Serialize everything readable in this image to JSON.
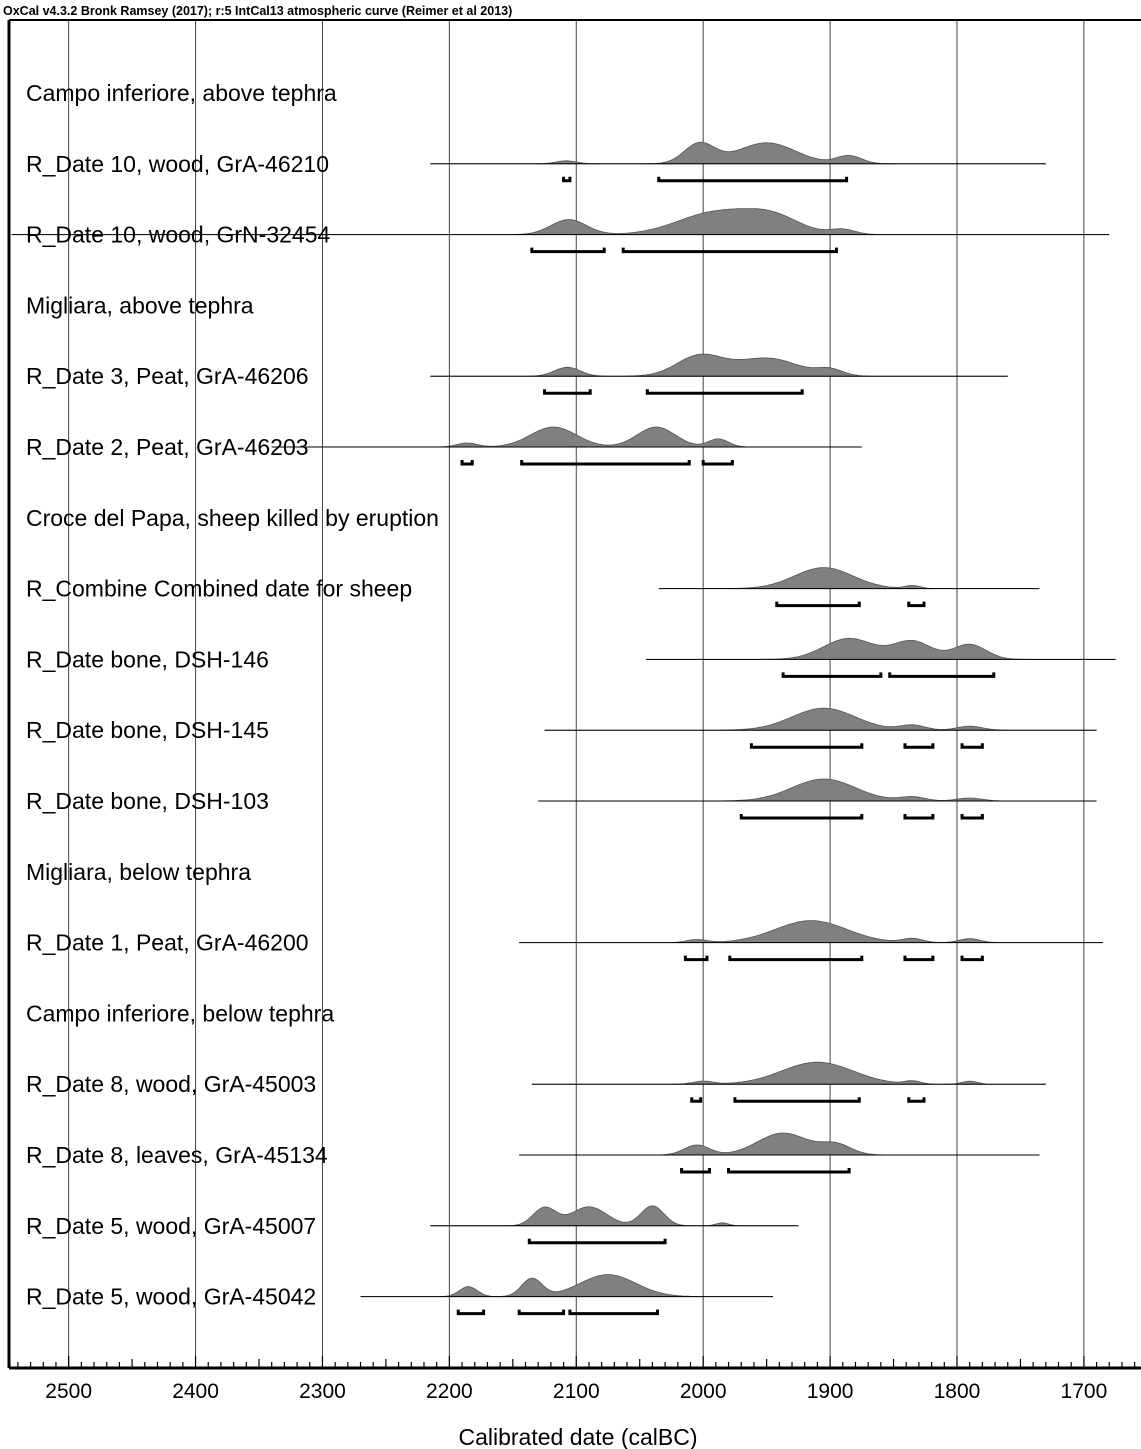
{
  "header": "OxCal v4.3.2 Bronk Ramsey (2017); r:5 IntCal13 atmospheric curve (Reimer et al 2013)",
  "chart_data": {
    "type": "area",
    "title": "",
    "xlabel": "Calibrated date (calBC)",
    "ylabel": "",
    "x_reversed": true,
    "xlim": [
      2547,
      1655
    ],
    "x_ticks": [
      2500,
      2400,
      2300,
      2200,
      2100,
      2000,
      1900,
      1800,
      1700
    ],
    "grid": true,
    "rows": [
      {
        "label": "Campo inferiore, above tephra",
        "header": true
      },
      {
        "label": "R_Date 10, wood, GrA-46210",
        "line": [
          2215,
          1730
        ],
        "peaks": [
          [
            2108,
            3,
            8
          ],
          [
            2003,
            20,
            12
          ],
          [
            1950,
            21,
            23
          ],
          [
            1885,
            8,
            10
          ]
        ],
        "ranges": [
          [
            2110,
            2105
          ],
          [
            2035,
            1887
          ]
        ]
      },
      {
        "label": "R_Date 10, wood, GrN-32454",
        "line": [
          2545,
          1680
        ],
        "peaks": [
          [
            2106,
            15,
            14
          ],
          [
            1990,
            22,
            30
          ],
          [
            1945,
            16,
            22
          ],
          [
            1890,
            5,
            10
          ]
        ],
        "ranges": [
          [
            2135,
            2078
          ],
          [
            2063,
            1895
          ]
        ]
      },
      {
        "label": "Migliara, above tephra",
        "header": true
      },
      {
        "label": "R_Date 3, Peat, GrA-46206",
        "line": [
          2215,
          1760
        ],
        "peaks": [
          [
            2107,
            9,
            10
          ],
          [
            2003,
            20,
            18
          ],
          [
            1950,
            18,
            25
          ],
          [
            1900,
            6,
            10
          ]
        ],
        "ranges": [
          [
            2125,
            2089
          ],
          [
            2044,
            1922
          ]
        ]
      },
      {
        "label": "R_Date 2, Peat, GrA-46203",
        "line": [
          2340,
          1875
        ],
        "peaks": [
          [
            2186,
            4,
            8
          ],
          [
            2118,
            20,
            18
          ],
          [
            2037,
            20,
            15
          ],
          [
            1988,
            8,
            8
          ]
        ],
        "ranges": [
          [
            2190,
            2182
          ],
          [
            2143,
            2011
          ],
          [
            2000,
            1977
          ]
        ]
      },
      {
        "label": "Croce del Papa, sheep killed by eruption",
        "header": true
      },
      {
        "label": "R_Combine Combined date for sheep",
        "line": [
          2035,
          1735
        ],
        "peaks": [
          [
            1905,
            21,
            23
          ],
          [
            1835,
            3,
            6
          ]
        ],
        "ranges": [
          [
            1942,
            1877
          ],
          [
            1838,
            1826
          ]
        ]
      },
      {
        "label": "R_Date bone, DSH-146",
        "line": [
          2045,
          1675
        ],
        "peaks": [
          [
            1885,
            21,
            20
          ],
          [
            1835,
            18,
            15
          ],
          [
            1790,
            15,
            13
          ]
        ],
        "ranges": [
          [
            1937,
            1860
          ],
          [
            1853,
            1771
          ]
        ]
      },
      {
        "label": "R_Date bone, DSH-145",
        "line": [
          2125,
          1690
        ],
        "peaks": [
          [
            1905,
            22,
            25
          ],
          [
            1835,
            5,
            10
          ],
          [
            1790,
            4,
            10
          ]
        ],
        "ranges": [
          [
            1962,
            1875
          ],
          [
            1841,
            1819
          ],
          [
            1796,
            1780
          ]
        ]
      },
      {
        "label": "R_Date bone, DSH-103",
        "line": [
          2130,
          1690
        ],
        "peaks": [
          [
            1905,
            22,
            25
          ],
          [
            1835,
            4,
            10
          ],
          [
            1790,
            3,
            10
          ]
        ],
        "ranges": [
          [
            1970,
            1875
          ],
          [
            1841,
            1819
          ],
          [
            1796,
            1780
          ]
        ]
      },
      {
        "label": "Migliara, below tephra",
        "header": true
      },
      {
        "label": "R_Date 1, Peat, GrA-46200",
        "line": [
          2145,
          1685
        ],
        "peaks": [
          [
            2005,
            3,
            8
          ],
          [
            1915,
            22,
            28
          ],
          [
            1835,
            4,
            8
          ],
          [
            1790,
            4,
            8
          ]
        ],
        "ranges": [
          [
            2014,
            1997
          ],
          [
            1979,
            1875
          ],
          [
            1841,
            1819
          ],
          [
            1796,
            1780
          ]
        ]
      },
      {
        "label": "Campo inferiore, below tephra",
        "header": true
      },
      {
        "label": "R_Date 8, wood, GrA-45003",
        "line": [
          2135,
          1730
        ],
        "peaks": [
          [
            2000,
            3,
            8
          ],
          [
            1910,
            22,
            28
          ],
          [
            1835,
            3,
            6
          ],
          [
            1790,
            3,
            6
          ]
        ],
        "ranges": [
          [
            2009,
            2002
          ],
          [
            1975,
            1877
          ],
          [
            1838,
            1826
          ]
        ]
      },
      {
        "label": "R_Date 8, leaves, GrA-45134",
        "line": [
          2145,
          1735
        ],
        "peaks": [
          [
            2005,
            10,
            10
          ],
          [
            1937,
            22,
            20
          ],
          [
            1895,
            10,
            12
          ]
        ],
        "ranges": [
          [
            2017,
            1995
          ],
          [
            1980,
            1885
          ]
        ]
      },
      {
        "label": "R_Date 5, wood, GrA-45007",
        "line": [
          2215,
          1925
        ],
        "peaks": [
          [
            2125,
            18,
            9
          ],
          [
            2090,
            19,
            14
          ],
          [
            2040,
            20,
            9
          ],
          [
            1985,
            3,
            5
          ]
        ],
        "ranges": [
          [
            2137,
            2030
          ]
        ]
      },
      {
        "label": "R_Date 5, wood, GrA-45042",
        "line": [
          2270,
          1945
        ],
        "peaks": [
          [
            2185,
            10,
            7
          ],
          [
            2135,
            18,
            8
          ],
          [
            2075,
            22,
            22
          ]
        ],
        "ranges": [
          [
            2193,
            2173
          ],
          [
            2145,
            2110
          ],
          [
            2105,
            2036
          ]
        ]
      }
    ]
  }
}
